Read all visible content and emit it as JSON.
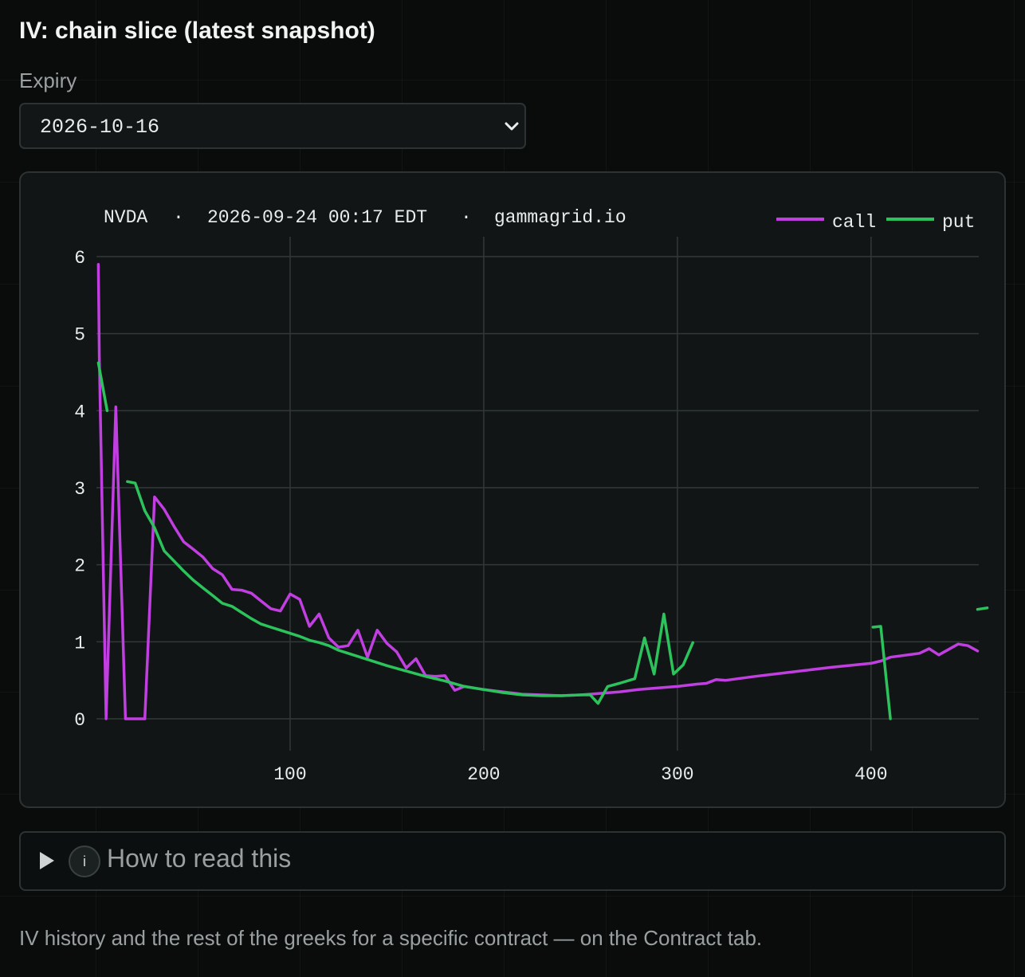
{
  "page": {
    "title": "IV: chain slice (latest snapshot)",
    "expiry_label": "Expiry",
    "expiry_value": "2026-10-16",
    "details_label": "How to read this",
    "details_icon": "info-icon",
    "footnote": "IV history and the rest of the greeks for a specific contract — on the Contract tab."
  },
  "chart_data": {
    "type": "line",
    "title": "",
    "header": {
      "ticker": "NVDA",
      "timestamp": "2026-09-24 00:17 EDT",
      "source": "gammagrid.io",
      "separator": "·"
    },
    "xlabel": "",
    "ylabel": "",
    "xlim": [
      0,
      460
    ],
    "ylim": [
      0,
      6
    ],
    "xticks": [
      100,
      200,
      300,
      400
    ],
    "yticks": [
      0,
      1,
      2,
      3,
      4,
      5,
      6
    ],
    "grid": true,
    "legend": "top-right",
    "series": [
      {
        "name": "call",
        "color": "#c13ee0",
        "segments": [
          [
            [
              1,
              5.9
            ],
            [
              1.5,
              4.7
            ],
            [
              5,
              0.0
            ],
            [
              10,
              4.05
            ],
            [
              15,
              0.0
            ],
            [
              20,
              0.0
            ],
            [
              25,
              0.0
            ],
            [
              30,
              2.88
            ],
            [
              35,
              2.72
            ],
            [
              40,
              2.5
            ],
            [
              45,
              2.3
            ],
            [
              50,
              2.2
            ],
            [
              55,
              2.1
            ],
            [
              60,
              1.95
            ],
            [
              65,
              1.87
            ],
            [
              70,
              1.68
            ],
            [
              75,
              1.67
            ],
            [
              80,
              1.63
            ],
            [
              85,
              1.53
            ],
            [
              90,
              1.43
            ],
            [
              95,
              1.4
            ],
            [
              100,
              1.62
            ],
            [
              105,
              1.55
            ],
            [
              110,
              1.2
            ],
            [
              115,
              1.36
            ],
            [
              120,
              1.05
            ],
            [
              125,
              0.93
            ],
            [
              130,
              0.95
            ],
            [
              135,
              1.15
            ],
            [
              140,
              0.8
            ],
            [
              145,
              1.15
            ],
            [
              150,
              0.98
            ],
            [
              155,
              0.87
            ],
            [
              160,
              0.66
            ],
            [
              165,
              0.78
            ],
            [
              170,
              0.56
            ],
            [
              175,
              0.55
            ],
            [
              180,
              0.56
            ],
            [
              185,
              0.37
            ],
            [
              190,
              0.42
            ],
            [
              195,
              0.4
            ],
            [
              200,
              0.38
            ],
            [
              210,
              0.35
            ],
            [
              220,
              0.32
            ],
            [
              230,
              0.31
            ],
            [
              240,
              0.3
            ],
            [
              250,
              0.31
            ],
            [
              260,
              0.33
            ],
            [
              270,
              0.35
            ],
            [
              280,
              0.38
            ],
            [
              290,
              0.4
            ],
            [
              300,
              0.42
            ],
            [
              310,
              0.45
            ],
            [
              315,
              0.46
            ],
            [
              320,
              0.51
            ],
            [
              325,
              0.5
            ],
            [
              340,
              0.55
            ],
            [
              360,
              0.61
            ],
            [
              380,
              0.67
            ],
            [
              400,
              0.72
            ],
            [
              405,
              0.75
            ],
            [
              410,
              0.8
            ],
            [
              425,
              0.85
            ],
            [
              430,
              0.91
            ],
            [
              435,
              0.83
            ],
            [
              445,
              0.97
            ],
            [
              450,
              0.95
            ],
            [
              455,
              0.88
            ]
          ]
        ]
      },
      {
        "name": "put",
        "color": "#2cc25c",
        "segments": [
          [
            [
              1,
              4.62
            ],
            [
              5.5,
              4.0
            ]
          ],
          [
            [
              16,
              3.08
            ],
            [
              20,
              3.06
            ],
            [
              25,
              2.7
            ],
            [
              30,
              2.48
            ],
            [
              35,
              2.18
            ],
            [
              40,
              2.05
            ],
            [
              45,
              1.92
            ],
            [
              50,
              1.8
            ],
            [
              55,
              1.7
            ],
            [
              60,
              1.6
            ],
            [
              65,
              1.5
            ],
            [
              70,
              1.46
            ],
            [
              75,
              1.38
            ],
            [
              80,
              1.3
            ],
            [
              85,
              1.23
            ],
            [
              90,
              1.19
            ],
            [
              95,
              1.15
            ],
            [
              100,
              1.11
            ],
            [
              105,
              1.07
            ],
            [
              110,
              1.02
            ],
            [
              115,
              0.99
            ],
            [
              120,
              0.95
            ],
            [
              125,
              0.89
            ],
            [
              130,
              0.85
            ],
            [
              140,
              0.77
            ],
            [
              150,
              0.69
            ],
            [
              160,
              0.62
            ],
            [
              170,
              0.55
            ],
            [
              180,
              0.49
            ],
            [
              190,
              0.42
            ],
            [
              200,
              0.38
            ],
            [
              210,
              0.34
            ],
            [
              220,
              0.31
            ],
            [
              230,
              0.3
            ],
            [
              240,
              0.3
            ],
            [
              250,
              0.31
            ],
            [
              255,
              0.31
            ],
            [
              259,
              0.2
            ],
            [
              264,
              0.42
            ],
            [
              270,
              0.46
            ],
            [
              278,
              0.52
            ],
            [
              283,
              1.05
            ],
            [
              288,
              0.58
            ],
            [
              293,
              1.36
            ],
            [
              298,
              0.58
            ],
            [
              303,
              0.7
            ],
            [
              308,
              0.99
            ]
          ],
          [
            [
              401,
              1.19
            ],
            [
              405,
              1.2
            ],
            [
              410,
              0.0
            ]
          ],
          [
            [
              455,
              1.42
            ],
            [
              460,
              1.44
            ]
          ]
        ]
      }
    ]
  }
}
